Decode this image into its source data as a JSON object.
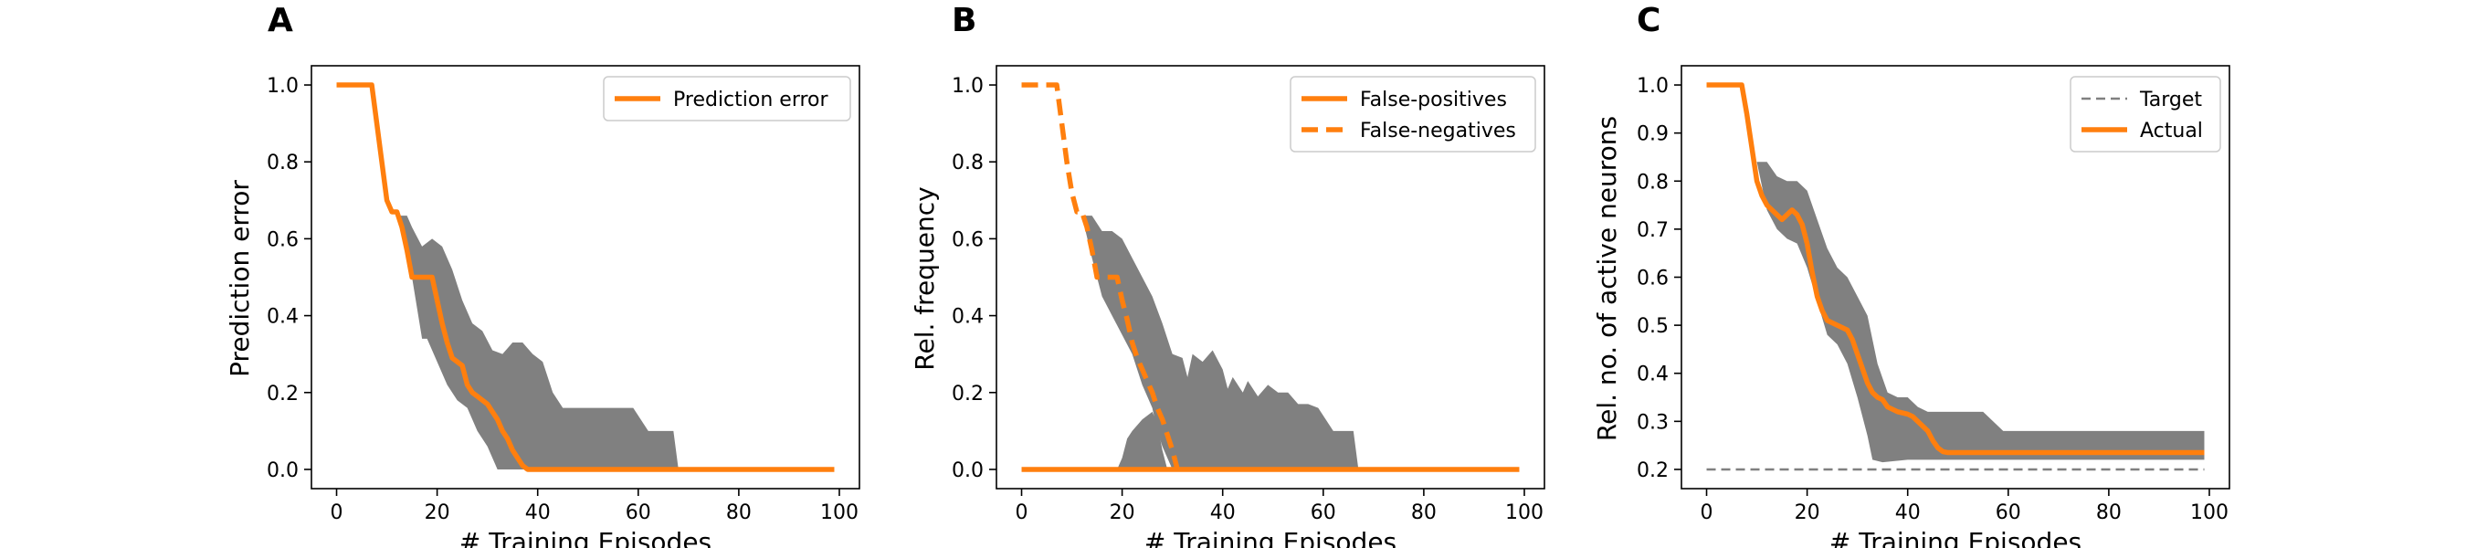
{
  "chart_data": [
    {
      "panel": "A",
      "type": "line",
      "xlabel": "# Training Episodes",
      "ylabel": "Prediction error",
      "xlim": [
        -5,
        104
      ],
      "ylim": [
        -0.05,
        1.05
      ],
      "xticks": [
        0,
        20,
        40,
        60,
        80,
        100
      ],
      "yticks": [
        0.0,
        0.2,
        0.4,
        0.6,
        0.8,
        1.0
      ],
      "ytick_labels": [
        "0.0",
        "0.2",
        "0.4",
        "0.6",
        "0.8",
        "1.0"
      ],
      "legend_position": "upper right",
      "colors": {
        "line": "#ff7f0e",
        "band": "#808080",
        "target": "#808080"
      },
      "band": {
        "upper": [
          [
            12,
            0.66
          ],
          [
            14,
            0.66
          ],
          [
            15,
            0.63
          ],
          [
            17,
            0.58
          ],
          [
            19,
            0.6
          ],
          [
            21,
            0.58
          ],
          [
            23,
            0.52
          ],
          [
            25,
            0.44
          ],
          [
            27,
            0.38
          ],
          [
            29,
            0.36
          ],
          [
            31,
            0.31
          ],
          [
            33,
            0.3
          ],
          [
            35,
            0.33
          ],
          [
            37,
            0.33
          ],
          [
            39,
            0.3
          ],
          [
            41,
            0.28
          ],
          [
            43,
            0.2
          ],
          [
            45,
            0.16
          ],
          [
            53,
            0.16
          ],
          [
            59,
            0.16
          ],
          [
            62,
            0.1
          ],
          [
            67,
            0.1
          ],
          [
            68,
            0.0
          ]
        ],
        "lower": [
          [
            12,
            0.66
          ],
          [
            14,
            0.58
          ],
          [
            15,
            0.5
          ],
          [
            16,
            0.42
          ],
          [
            17,
            0.34
          ],
          [
            18,
            0.34
          ],
          [
            20,
            0.28
          ],
          [
            22,
            0.22
          ],
          [
            24,
            0.18
          ],
          [
            26,
            0.16
          ],
          [
            28,
            0.1
          ],
          [
            30,
            0.06
          ],
          [
            31,
            0.03
          ],
          [
            32,
            0.0
          ],
          [
            68,
            0.0
          ]
        ]
      },
      "series": [
        {
          "name": "Prediction error",
          "style": "solid",
          "points": [
            [
              0,
              1.0
            ],
            [
              7,
              1.0
            ],
            [
              8,
              0.9
            ],
            [
              9,
              0.8
            ],
            [
              10,
              0.7
            ],
            [
              11,
              0.67
            ],
            [
              12,
              0.67
            ],
            [
              13,
              0.63
            ],
            [
              14,
              0.57
            ],
            [
              15,
              0.5
            ],
            [
              19,
              0.5
            ],
            [
              20,
              0.44
            ],
            [
              21,
              0.38
            ],
            [
              22,
              0.33
            ],
            [
              23,
              0.29
            ],
            [
              25,
              0.27
            ],
            [
              26,
              0.22
            ],
            [
              27,
              0.2
            ],
            [
              28,
              0.19
            ],
            [
              30,
              0.17
            ],
            [
              31,
              0.15
            ],
            [
              32,
              0.13
            ],
            [
              33,
              0.1
            ],
            [
              34,
              0.08
            ],
            [
              35,
              0.05
            ],
            [
              36,
              0.03
            ],
            [
              37,
              0.01
            ],
            [
              38,
              0.0
            ],
            [
              99,
              0.0
            ]
          ]
        }
      ]
    },
    {
      "panel": "B",
      "type": "line",
      "xlabel": "# Training Episodes",
      "ylabel": "Rel. frequency",
      "xlim": [
        -5,
        104
      ],
      "ylim": [
        -0.05,
        1.05
      ],
      "xticks": [
        0,
        20,
        40,
        60,
        80,
        100
      ],
      "yticks": [
        0.0,
        0.2,
        0.4,
        0.6,
        0.8,
        1.0
      ],
      "ytick_labels": [
        "0.0",
        "0.2",
        "0.4",
        "0.6",
        "0.8",
        "1.0"
      ],
      "legend_position": "upper right",
      "colors": {
        "line": "#ff7f0e",
        "band": "#808080",
        "target": "#808080"
      },
      "band": {
        "upper": [
          [
            12,
            0.66
          ],
          [
            14,
            0.66
          ],
          [
            16,
            0.62
          ],
          [
            18,
            0.62
          ],
          [
            20,
            0.6
          ],
          [
            22,
            0.55
          ],
          [
            24,
            0.5
          ],
          [
            26,
            0.45
          ],
          [
            28,
            0.38
          ],
          [
            30,
            0.3
          ],
          [
            32,
            0.29
          ],
          [
            33,
            0.24
          ],
          [
            34,
            0.3
          ],
          [
            36,
            0.28
          ],
          [
            38,
            0.31
          ],
          [
            40,
            0.26
          ],
          [
            41,
            0.21
          ],
          [
            42,
            0.24
          ],
          [
            44,
            0.2
          ],
          [
            45,
            0.23
          ],
          [
            47,
            0.19
          ],
          [
            49,
            0.22
          ],
          [
            51,
            0.2
          ],
          [
            53,
            0.2
          ],
          [
            55,
            0.17
          ],
          [
            57,
            0.17
          ],
          [
            59,
            0.16
          ],
          [
            62,
            0.1
          ],
          [
            66,
            0.1
          ],
          [
            67,
            0.0
          ]
        ],
        "lower": [
          [
            12,
            0.66
          ],
          [
            14,
            0.55
          ],
          [
            16,
            0.45
          ],
          [
            18,
            0.4
          ],
          [
            20,
            0.35
          ],
          [
            22,
            0.3
          ],
          [
            24,
            0.22
          ],
          [
            26,
            0.16
          ],
          [
            27,
            0.1
          ],
          [
            28,
            0.06
          ],
          [
            29,
            0.03
          ],
          [
            30,
            0.0
          ],
          [
            67,
            0.0
          ]
        ]
      },
      "band2": {
        "upper": [
          [
            19,
            0.0
          ],
          [
            20,
            0.03
          ],
          [
            21,
            0.08
          ],
          [
            22,
            0.1
          ],
          [
            24,
            0.13
          ],
          [
            26,
            0.15
          ],
          [
            27,
            0.12
          ],
          [
            28,
            0.05
          ],
          [
            29,
            0.0
          ]
        ],
        "lower": [
          [
            19,
            0.0
          ],
          [
            29,
            0.0
          ]
        ]
      },
      "series": [
        {
          "name": "False-positives",
          "style": "solid",
          "points": [
            [
              0,
              0.0
            ],
            [
              99,
              0.0
            ]
          ]
        },
        {
          "name": "False-negatives",
          "style": "dashed",
          "points": [
            [
              0,
              1.0
            ],
            [
              7,
              1.0
            ],
            [
              8,
              0.9
            ],
            [
              9,
              0.8
            ],
            [
              10,
              0.72
            ],
            [
              11,
              0.67
            ],
            [
              12,
              0.67
            ],
            [
              13,
              0.63
            ],
            [
              14,
              0.57
            ],
            [
              15,
              0.5
            ],
            [
              19,
              0.5
            ],
            [
              20,
              0.44
            ],
            [
              21,
              0.39
            ],
            [
              22,
              0.33
            ],
            [
              23,
              0.29
            ],
            [
              24,
              0.26
            ],
            [
              25,
              0.23
            ],
            [
              26,
              0.2
            ],
            [
              27,
              0.16
            ],
            [
              28,
              0.13
            ],
            [
              29,
              0.09
            ],
            [
              30,
              0.05
            ],
            [
              31,
              0.0
            ]
          ]
        }
      ]
    },
    {
      "panel": "C",
      "type": "line",
      "xlabel": "# Training Episodes",
      "ylabel": "Rel. no. of active neurons",
      "xlim": [
        -5,
        104
      ],
      "ylim": [
        0.16,
        1.04
      ],
      "xticks": [
        0,
        20,
        40,
        60,
        80,
        100
      ],
      "yticks": [
        0.2,
        0.3,
        0.4,
        0.5,
        0.6,
        0.7,
        0.8,
        0.9,
        1.0
      ],
      "ytick_labels": [
        "0.2",
        "0.3",
        "0.4",
        "0.5",
        "0.6",
        "0.7",
        "0.8",
        "0.9",
        "1.0"
      ],
      "legend_position": "upper right",
      "colors": {
        "line": "#ff7f0e",
        "band": "#808080",
        "target": "#808080"
      },
      "band": {
        "upper": [
          [
            10,
            0.84
          ],
          [
            12,
            0.84
          ],
          [
            14,
            0.81
          ],
          [
            16,
            0.8
          ],
          [
            18,
            0.8
          ],
          [
            20,
            0.78
          ],
          [
            22,
            0.72
          ],
          [
            24,
            0.66
          ],
          [
            26,
            0.62
          ],
          [
            28,
            0.6
          ],
          [
            30,
            0.56
          ],
          [
            32,
            0.52
          ],
          [
            34,
            0.42
          ],
          [
            36,
            0.36
          ],
          [
            38,
            0.35
          ],
          [
            40,
            0.35
          ],
          [
            42,
            0.33
          ],
          [
            44,
            0.32
          ],
          [
            46,
            0.32
          ],
          [
            50,
            0.32
          ],
          [
            55,
            0.32
          ],
          [
            57,
            0.3
          ],
          [
            59,
            0.28
          ],
          [
            99,
            0.28
          ]
        ],
        "lower": [
          [
            10,
            0.84
          ],
          [
            12,
            0.74
          ],
          [
            14,
            0.7
          ],
          [
            16,
            0.68
          ],
          [
            18,
            0.67
          ],
          [
            20,
            0.62
          ],
          [
            22,
            0.55
          ],
          [
            24,
            0.48
          ],
          [
            26,
            0.46
          ],
          [
            28,
            0.42
          ],
          [
            30,
            0.35
          ],
          [
            32,
            0.27
          ],
          [
            33,
            0.22
          ],
          [
            35,
            0.215
          ],
          [
            40,
            0.22
          ],
          [
            45,
            0.22
          ],
          [
            50,
            0.22
          ],
          [
            60,
            0.22
          ],
          [
            99,
            0.22
          ]
        ]
      },
      "series": [
        {
          "name": "Target",
          "style": "thin-dashed",
          "points": [
            [
              0,
              0.2
            ],
            [
              99,
              0.2
            ]
          ]
        },
        {
          "name": "Actual",
          "style": "solid",
          "points": [
            [
              0,
              1.0
            ],
            [
              7,
              1.0
            ],
            [
              8,
              0.94
            ],
            [
              9,
              0.87
            ],
            [
              10,
              0.8
            ],
            [
              11,
              0.77
            ],
            [
              12,
              0.75
            ],
            [
              14,
              0.73
            ],
            [
              15,
              0.72
            ],
            [
              16,
              0.73
            ],
            [
              17,
              0.74
            ],
            [
              18,
              0.73
            ],
            [
              19,
              0.71
            ],
            [
              20,
              0.67
            ],
            [
              21,
              0.61
            ],
            [
              22,
              0.56
            ],
            [
              23,
              0.53
            ],
            [
              24,
              0.51
            ],
            [
              26,
              0.5
            ],
            [
              28,
              0.49
            ],
            [
              29,
              0.47
            ],
            [
              30,
              0.44
            ],
            [
              31,
              0.41
            ],
            [
              32,
              0.38
            ],
            [
              33,
              0.36
            ],
            [
              34,
              0.35
            ],
            [
              35,
              0.345
            ],
            [
              36,
              0.33
            ],
            [
              38,
              0.32
            ],
            [
              40,
              0.315
            ],
            [
              41,
              0.31
            ],
            [
              42,
              0.3
            ],
            [
              43,
              0.29
            ],
            [
              44,
              0.28
            ],
            [
              45,
              0.26
            ],
            [
              46,
              0.245
            ],
            [
              47,
              0.237
            ],
            [
              48,
              0.235
            ],
            [
              99,
              0.235
            ]
          ]
        }
      ]
    }
  ]
}
